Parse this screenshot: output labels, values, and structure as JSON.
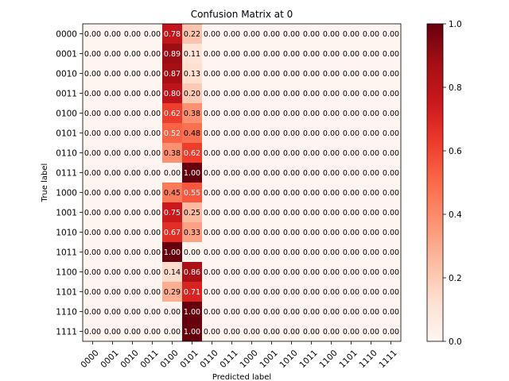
{
  "chart_data": {
    "type": "heatmap",
    "title": "Confusion Matrix at 0",
    "xlabel": "Predicted label",
    "ylabel": "True label",
    "x_categories": [
      "0000",
      "0001",
      "0010",
      "0011",
      "0100",
      "0101",
      "0110",
      "0111",
      "1000",
      "1001",
      "1010",
      "1011",
      "1100",
      "1101",
      "1110",
      "1111"
    ],
    "y_categories": [
      "0000",
      "0001",
      "0010",
      "0011",
      "0100",
      "0101",
      "0110",
      "0111",
      "1000",
      "1001",
      "1010",
      "1011",
      "1100",
      "1101",
      "1110",
      "1111"
    ],
    "values": [
      [
        0,
        0,
        0,
        0,
        0.78,
        0.22,
        0,
        0,
        0,
        0,
        0,
        0,
        0,
        0,
        0,
        0
      ],
      [
        0,
        0,
        0,
        0,
        0.89,
        0.11,
        0,
        0,
        0,
        0,
        0,
        0,
        0,
        0,
        0,
        0
      ],
      [
        0,
        0,
        0,
        0,
        0.87,
        0.13,
        0,
        0,
        0,
        0,
        0,
        0,
        0,
        0,
        0,
        0
      ],
      [
        0,
        0,
        0,
        0,
        0.8,
        0.2,
        0,
        0,
        0,
        0,
        0,
        0,
        0,
        0,
        0,
        0
      ],
      [
        0,
        0,
        0,
        0,
        0.62,
        0.38,
        0,
        0,
        0,
        0,
        0,
        0,
        0,
        0,
        0,
        0
      ],
      [
        0,
        0,
        0,
        0,
        0.52,
        0.48,
        0,
        0,
        0,
        0,
        0,
        0,
        0,
        0,
        0,
        0
      ],
      [
        0,
        0,
        0,
        0,
        0.38,
        0.62,
        0,
        0,
        0,
        0,
        0,
        0,
        0,
        0,
        0,
        0
      ],
      [
        0,
        0,
        0,
        0,
        0.0,
        1.0,
        0,
        0,
        0,
        0,
        0,
        0,
        0,
        0,
        0,
        0
      ],
      [
        0,
        0,
        0,
        0,
        0.45,
        0.55,
        0,
        0,
        0,
        0,
        0,
        0,
        0,
        0,
        0,
        0
      ],
      [
        0,
        0,
        0,
        0,
        0.75,
        0.25,
        0,
        0,
        0,
        0,
        0,
        0,
        0,
        0,
        0,
        0
      ],
      [
        0,
        0,
        0,
        0,
        0.67,
        0.33,
        0,
        0,
        0,
        0,
        0,
        0,
        0,
        0,
        0,
        0
      ],
      [
        0,
        0,
        0,
        0,
        1.0,
        0.0,
        0,
        0,
        0,
        0,
        0,
        0,
        0,
        0,
        0,
        0
      ],
      [
        0,
        0,
        0,
        0,
        0.14,
        0.86,
        0,
        0,
        0,
        0,
        0,
        0,
        0,
        0,
        0,
        0
      ],
      [
        0,
        0,
        0,
        0,
        0.29,
        0.71,
        0,
        0,
        0,
        0,
        0,
        0,
        0,
        0,
        0,
        0
      ],
      [
        0,
        0,
        0,
        0,
        0.0,
        1.0,
        0,
        0,
        0,
        0,
        0,
        0,
        0,
        0,
        0,
        0
      ],
      [
        0,
        0,
        0,
        0,
        0.0,
        1.0,
        0,
        0,
        0,
        0,
        0,
        0,
        0,
        0,
        0,
        0
      ]
    ],
    "value_format": "0.00",
    "colormap": "Reds",
    "colorbar": {
      "range": [
        0,
        1
      ],
      "ticks": [
        "0.0",
        "0.2",
        "0.4",
        "0.6",
        "0.8",
        "1.0"
      ]
    },
    "text_colors": {
      "light_cells": "#000000",
      "dark_cells": "#ffffff"
    },
    "grid": false
  }
}
